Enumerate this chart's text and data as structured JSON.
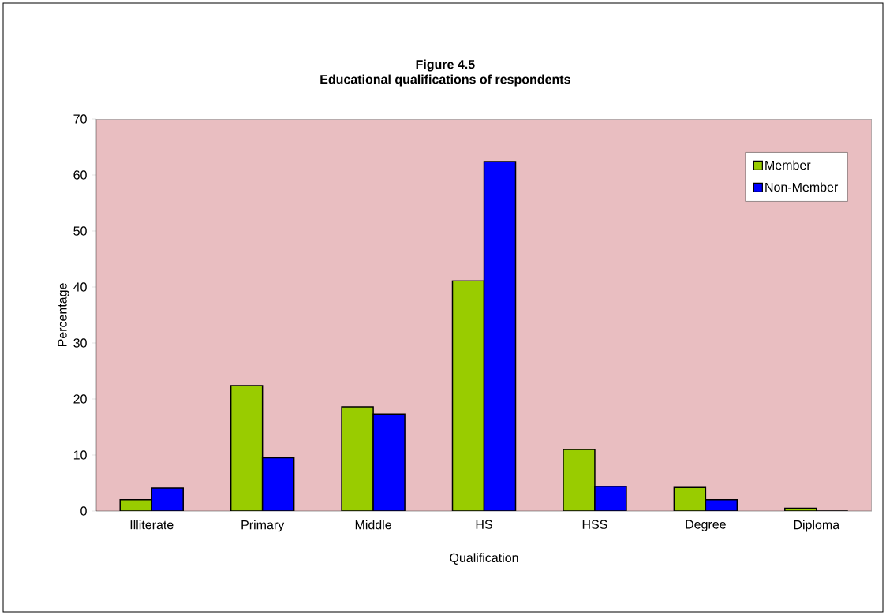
{
  "chart_data": {
    "type": "bar",
    "title": "Figure 4.5",
    "subtitle": "Educational qualifications of respondents",
    "xlabel": "Qualification",
    "ylabel": "Percentage",
    "categories": [
      "Illiterate",
      "Primary",
      "Middle",
      "HS",
      "HSS",
      "Degree",
      "Diploma"
    ],
    "series": [
      {
        "name": "Member",
        "color": "#99cc00",
        "values": [
          2,
          22.4,
          18.6,
          41.1,
          11,
          4.2,
          0.5
        ]
      },
      {
        "name": "Non-Member",
        "color": "#0000ff",
        "values": [
          4.1,
          9.5,
          17.3,
          62.4,
          4.4,
          2,
          0
        ]
      }
    ],
    "ylim": [
      0,
      70
    ],
    "yticks": [
      0,
      10,
      20,
      30,
      40,
      50,
      60,
      70
    ],
    "grid": false,
    "legend": "top right"
  }
}
